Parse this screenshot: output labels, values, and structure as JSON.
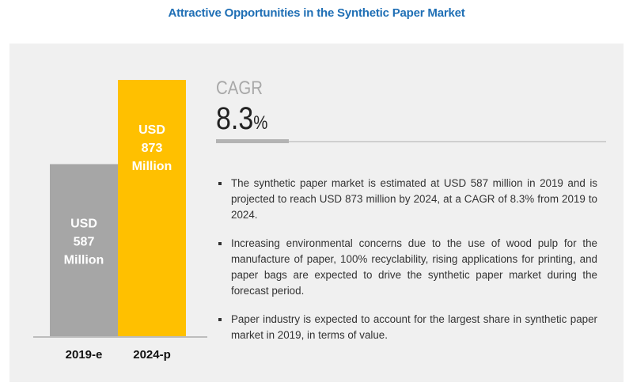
{
  "title": "Attractive Opportunities in the Synthetic Paper Market",
  "chart_data": {
    "type": "bar",
    "categories": [
      "2019-e",
      "2024-p"
    ],
    "values": [
      587,
      873
    ],
    "unit": "USD Million",
    "data_labels": [
      [
        "USD",
        "587",
        "Million"
      ],
      [
        "USD",
        "873",
        "Million"
      ]
    ],
    "colors": [
      "#a6a6a6",
      "#ffc000"
    ],
    "ylim": [
      0,
      873
    ],
    "grid": false
  },
  "cagr": {
    "label": "CAGR",
    "value": "8.3",
    "unit": "%"
  },
  "bullets": [
    "The synthetic paper market is estimated at USD 587 million in 2019 and is projected to reach USD 873 million by 2024, at a CAGR of 8.3% from 2019 to 2024.",
    "Increasing environmental concerns due to the use of wood pulp for the manufacture of paper, 100% recyclability, rising applications for printing, and paper bags are expected to drive the synthetic paper market during the forecast period.",
    "Paper industry is expected to account for the largest share in synthetic paper market in 2019, in terms of value."
  ]
}
